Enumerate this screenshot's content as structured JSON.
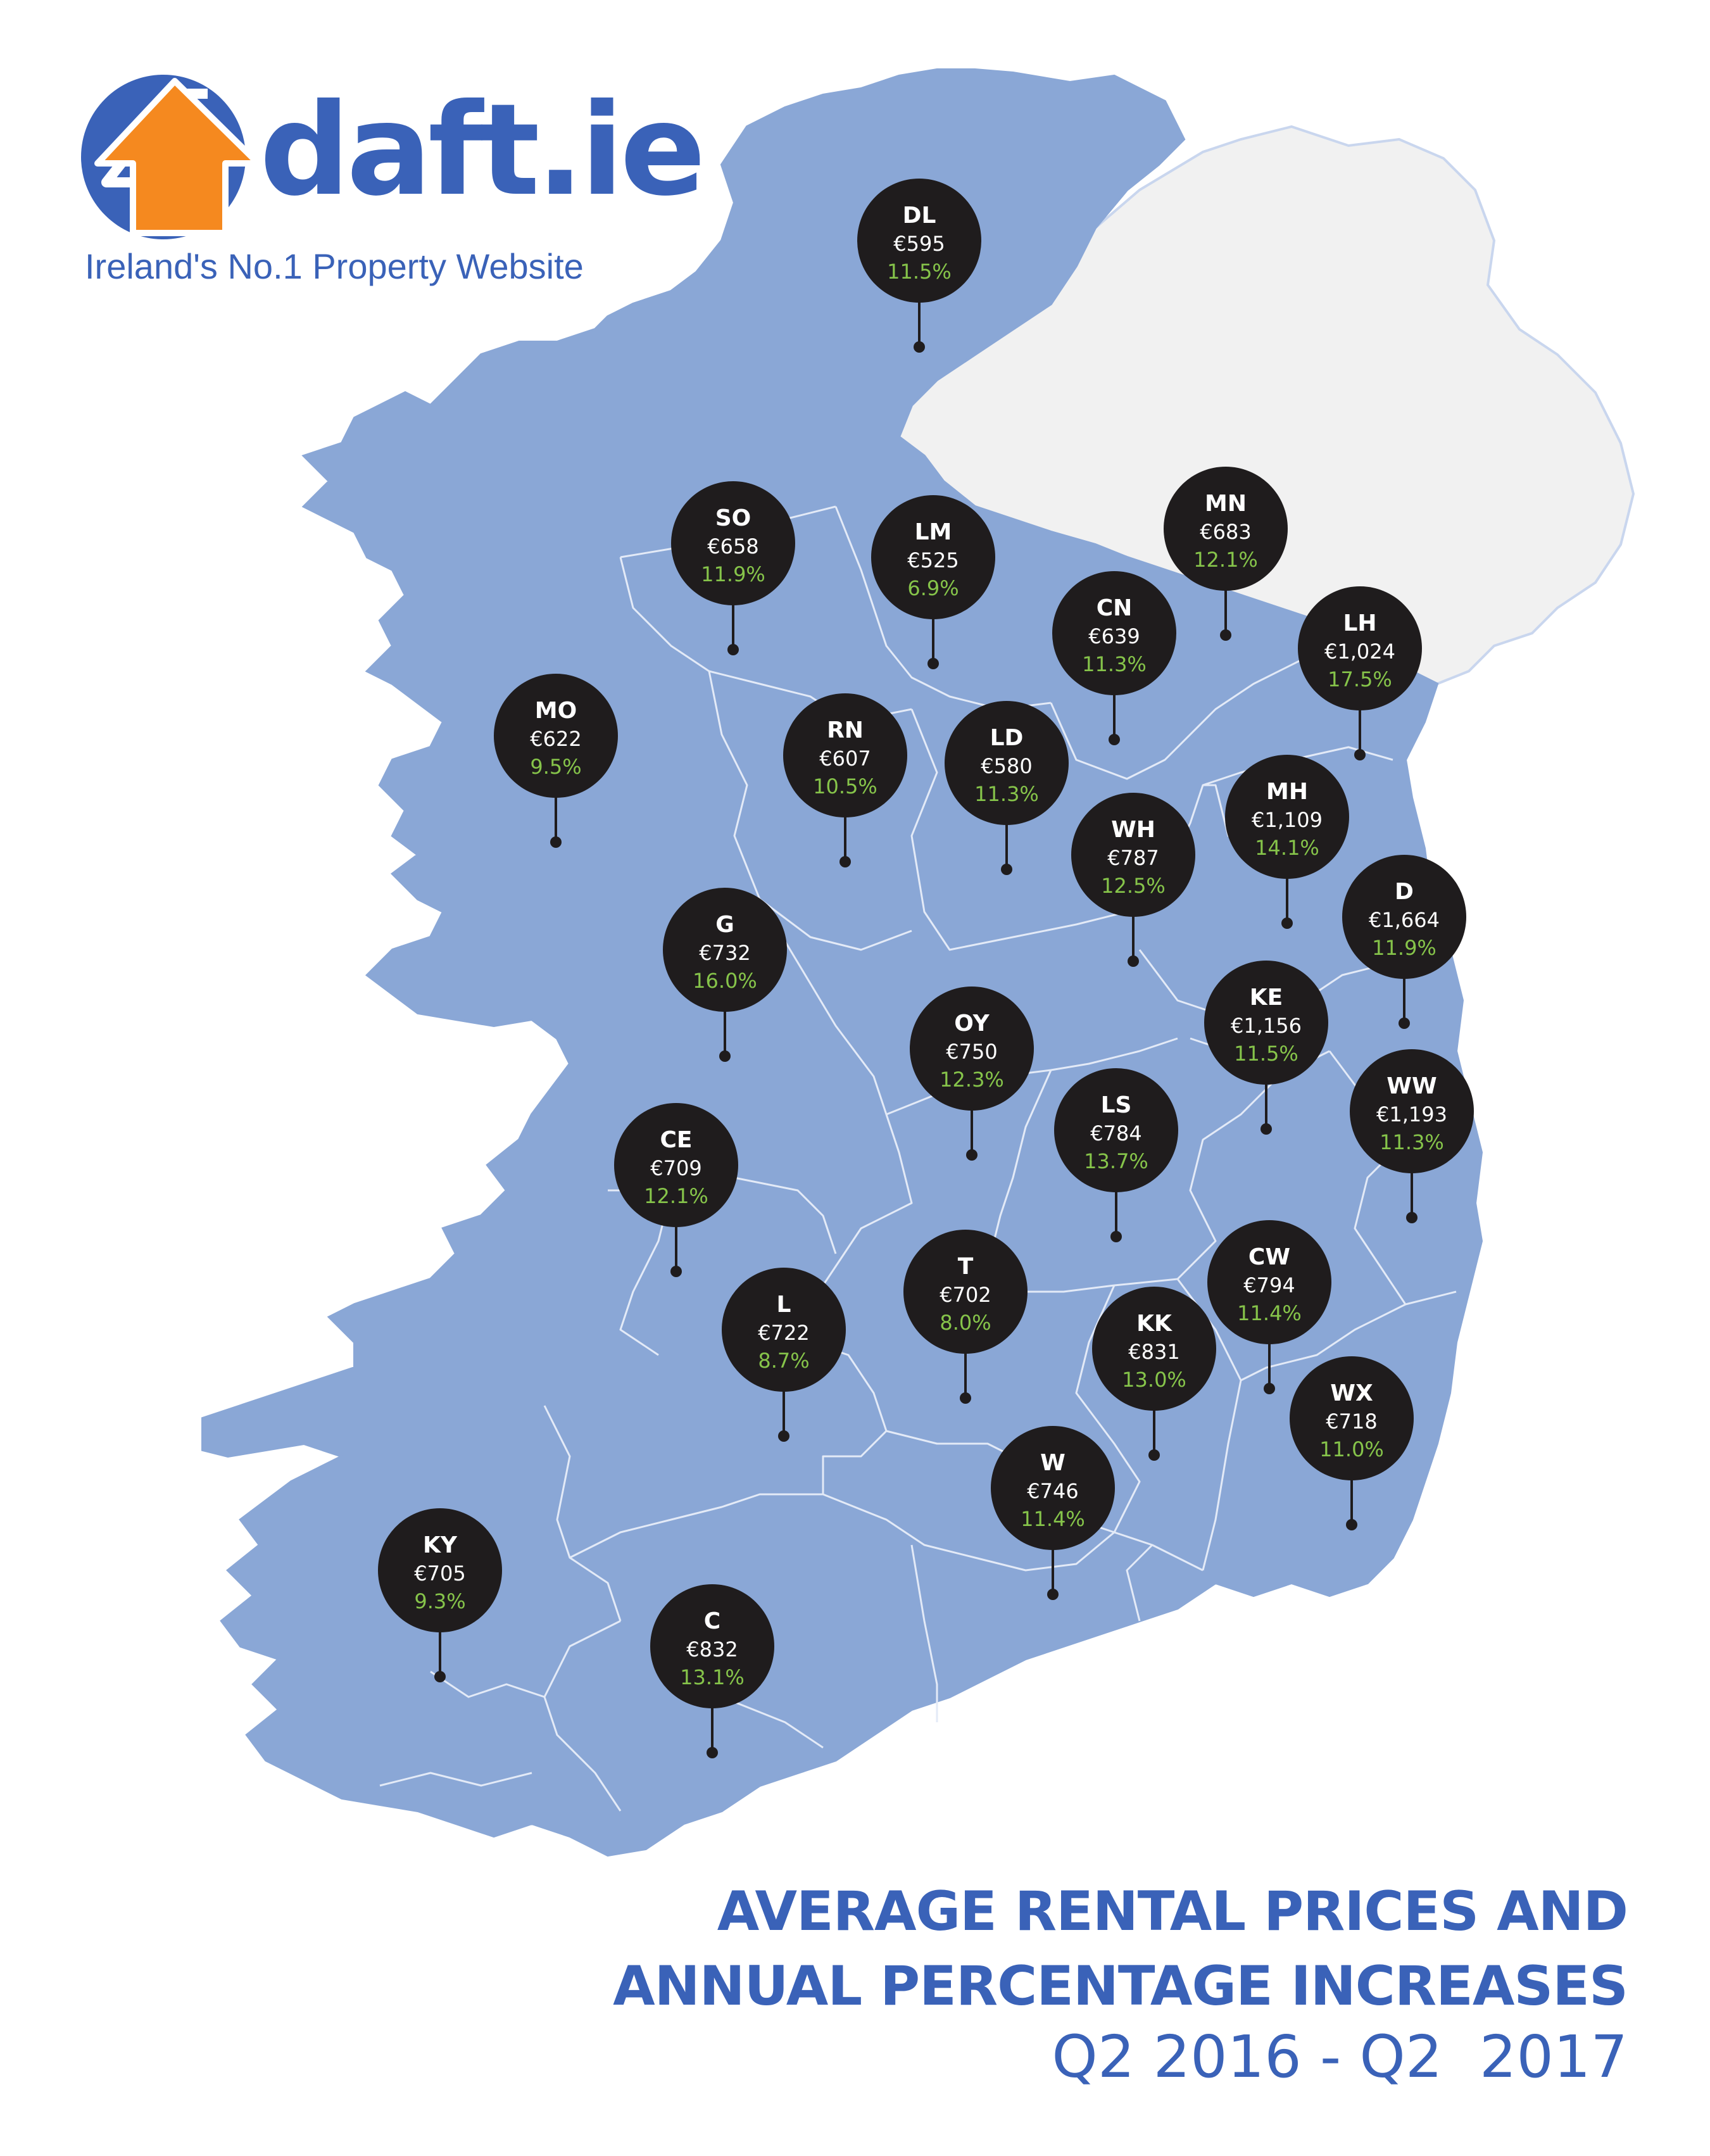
{
  "brand": {
    "name": "daft.ie",
    "tagline": "Ireland's No.1 Property Website",
    "blue": "#3a62b8",
    "orange": "#f5891f"
  },
  "title": {
    "line1": "AVERAGE RENTAL PRICES AND",
    "line2": "ANNUAL PERCENTAGE INCREASES",
    "period": "Q2 2016 - Q2  2017"
  },
  "colors": {
    "republic": "#8aa7d6",
    "north": "#f1f1f1",
    "border": "#c9d6ee",
    "pin": "#1f1c1d",
    "percent": "#86c44a"
  },
  "counties": [
    {
      "code": "DL",
      "price": "€595",
      "change": "11.5%"
    },
    {
      "code": "SO",
      "price": "€658",
      "change": "11.9%"
    },
    {
      "code": "LM",
      "price": "€525",
      "change": "6.9%"
    },
    {
      "code": "MN",
      "price": "€683",
      "change": "12.1%"
    },
    {
      "code": "CN",
      "price": "€639",
      "change": "11.3%"
    },
    {
      "code": "LH",
      "price": "€1,024",
      "change": "17.5%"
    },
    {
      "code": "MO",
      "price": "€622",
      "change": "9.5%"
    },
    {
      "code": "RN",
      "price": "€607",
      "change": "10.5%"
    },
    {
      "code": "LD",
      "price": "€580",
      "change": "11.3%"
    },
    {
      "code": "MH",
      "price": "€1,109",
      "change": "14.1%"
    },
    {
      "code": "WH",
      "price": "€787",
      "change": "12.5%"
    },
    {
      "code": "D",
      "price": "€1,664",
      "change": "11.9%"
    },
    {
      "code": "G",
      "price": "€732",
      "change": "16.0%"
    },
    {
      "code": "KE",
      "price": "€1,156",
      "change": "11.5%"
    },
    {
      "code": "OY",
      "price": "€750",
      "change": "12.3%"
    },
    {
      "code": "WW",
      "price": "€1,193",
      "change": "11.3%"
    },
    {
      "code": "LS",
      "price": "€784",
      "change": "13.7%"
    },
    {
      "code": "CE",
      "price": "€709",
      "change": "12.1%"
    },
    {
      "code": "CW",
      "price": "€794",
      "change": "11.4%"
    },
    {
      "code": "T",
      "price": "€702",
      "change": "8.0%"
    },
    {
      "code": "L",
      "price": "€722",
      "change": "8.7%"
    },
    {
      "code": "KK",
      "price": "€831",
      "change": "13.0%"
    },
    {
      "code": "WX",
      "price": "€718",
      "change": "11.0%"
    },
    {
      "code": "W",
      "price": "€746",
      "change": "11.4%"
    },
    {
      "code": "KY",
      "price": "€705",
      "change": "9.3%"
    },
    {
      "code": "C",
      "price": "€832",
      "change": "13.1%"
    }
  ]
}
